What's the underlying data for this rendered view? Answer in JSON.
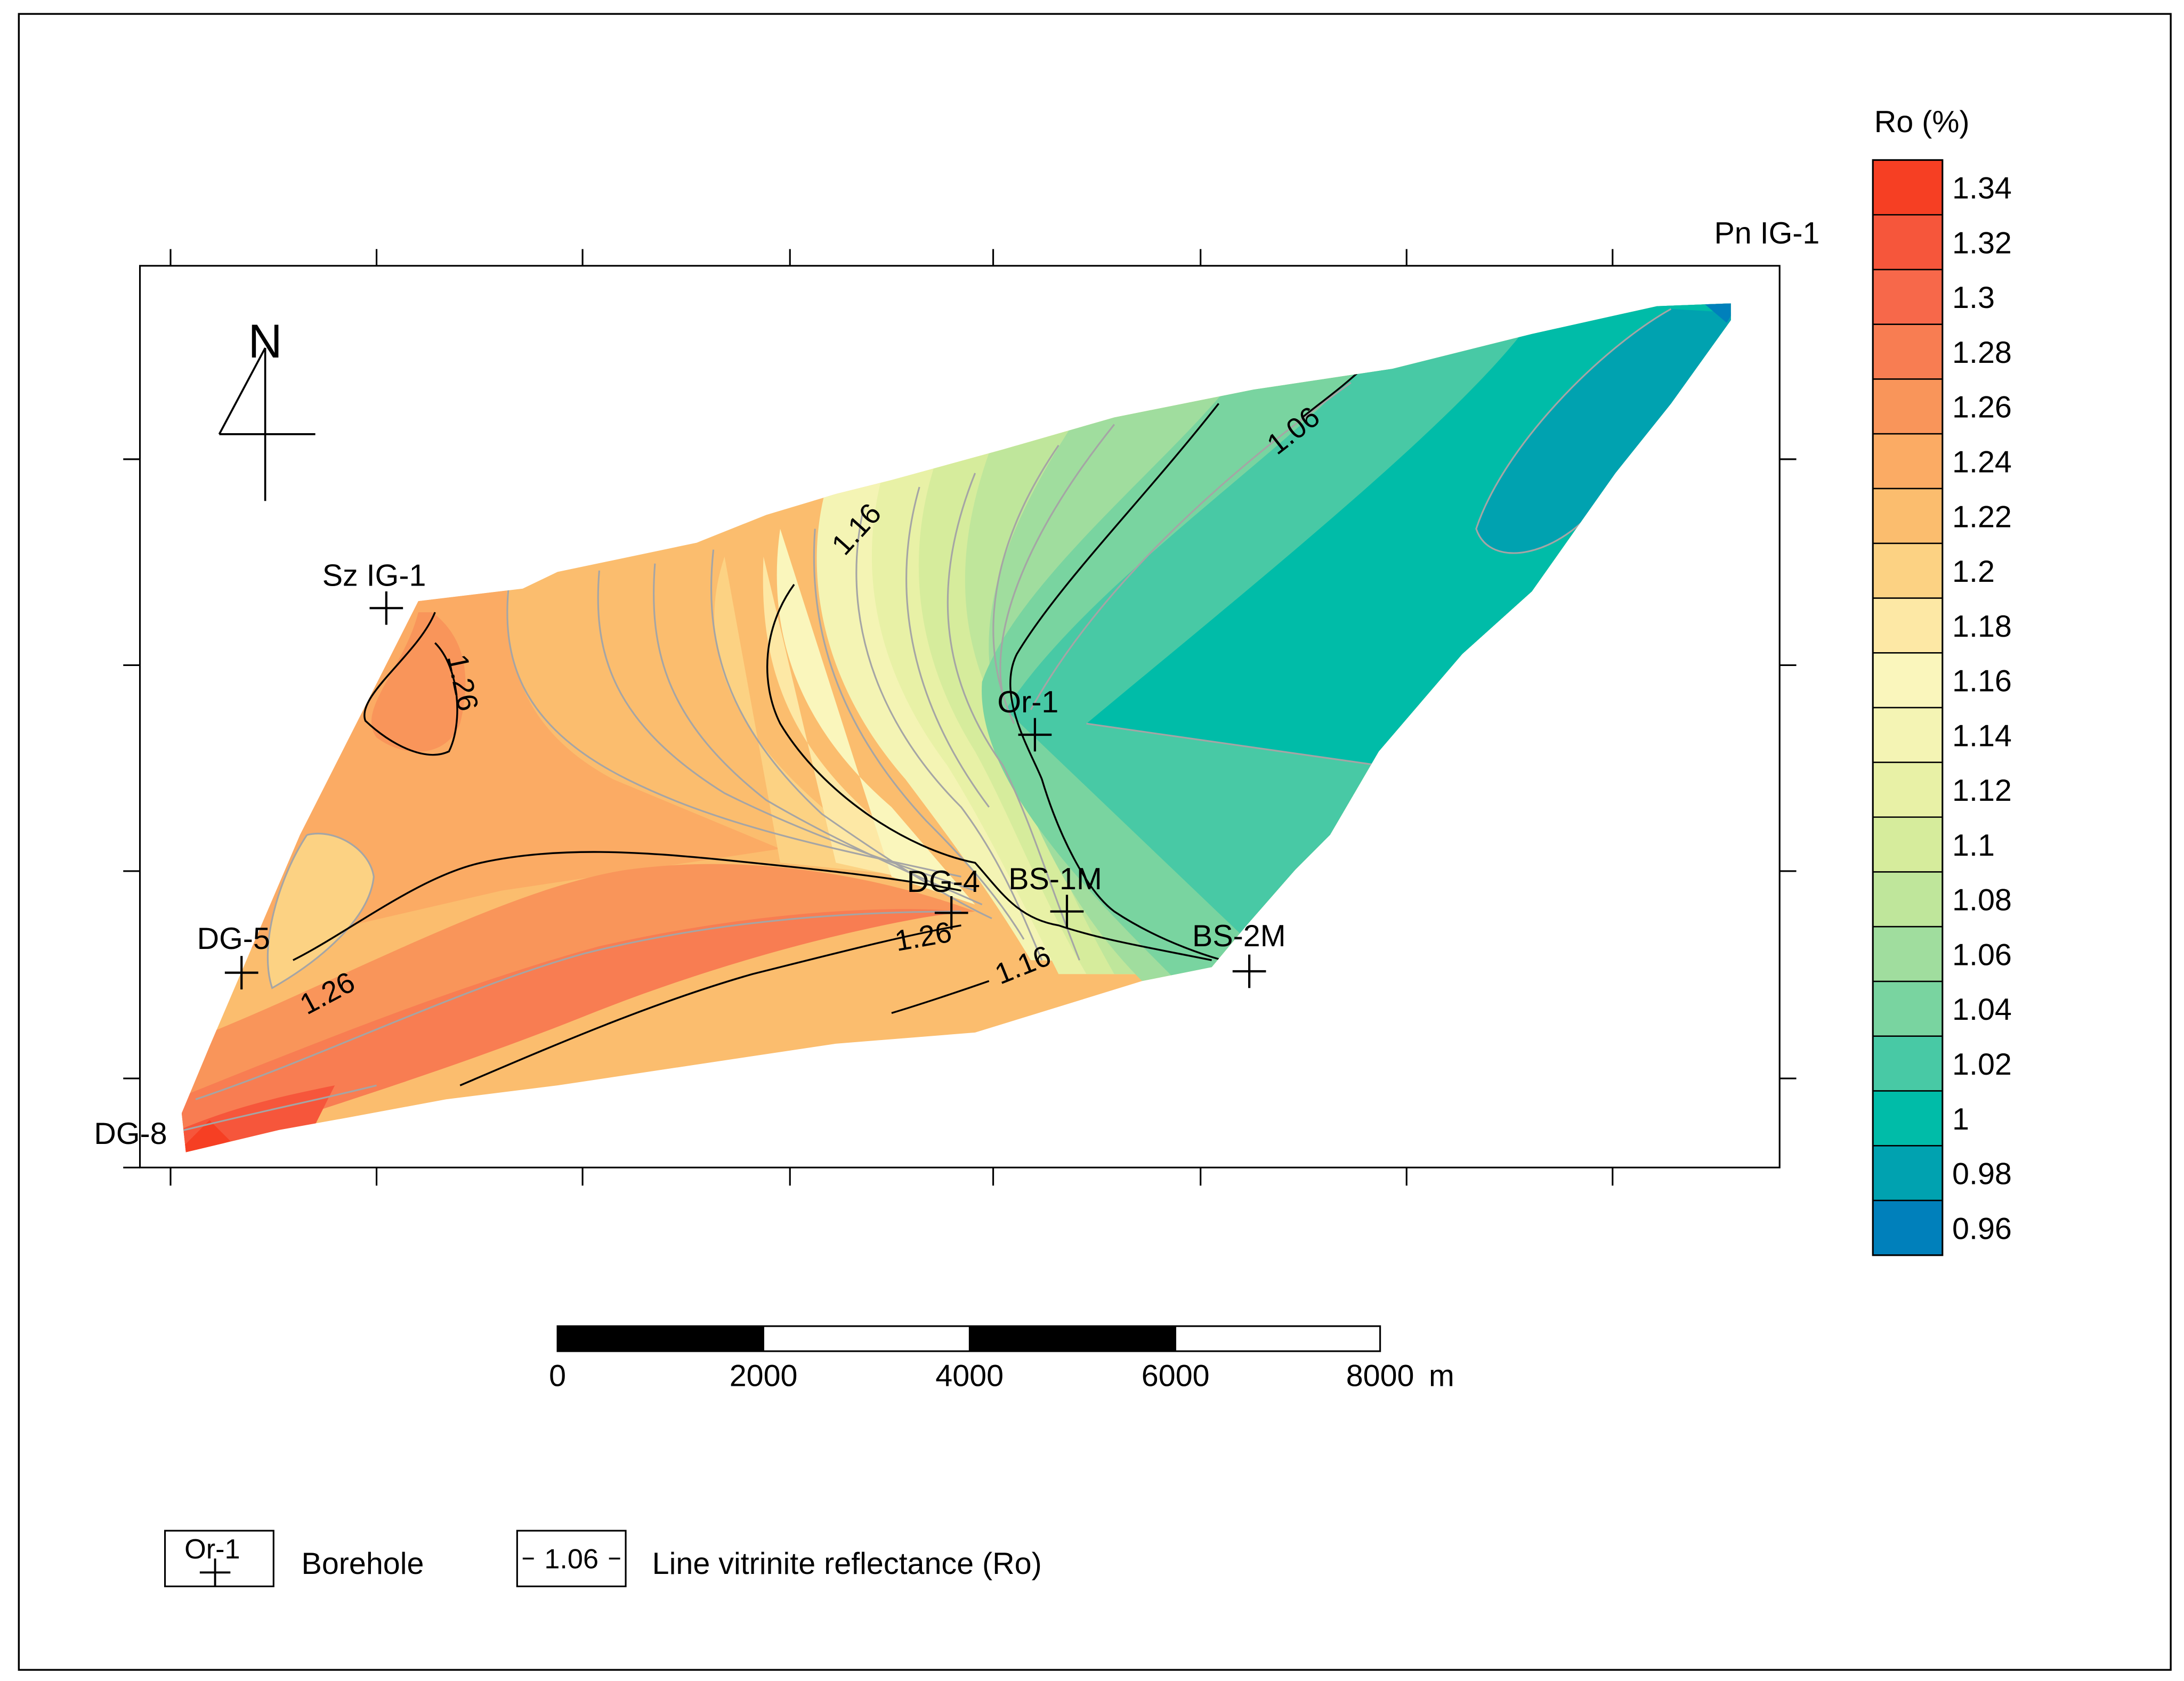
{
  "map": {
    "north_label": "N",
    "boreholes": [
      {
        "id": "szig1",
        "label": "Sz IG-1"
      },
      {
        "id": "or1",
        "label": "Or-1"
      },
      {
        "id": "dg4",
        "label": "DG-4"
      },
      {
        "id": "bs1m",
        "label": "BS-1M"
      },
      {
        "id": "bs2m",
        "label": "BS-2M"
      },
      {
        "id": "dg5",
        "label": "DG-5"
      },
      {
        "id": "dg8",
        "label": "DG-8"
      },
      {
        "id": "pnig1",
        "label": "Pn IG-1"
      }
    ],
    "contour_labels": [
      "1.26",
      "1.16",
      "1.06",
      "1.26",
      "1.26",
      "1.16"
    ]
  },
  "colorbar": {
    "title": "Ro (%)",
    "ticks": [
      "1.34",
      "1.32",
      "1.3",
      "1.28",
      "1.26",
      "1.24",
      "1.22",
      "1.2",
      "1.18",
      "1.16",
      "1.14",
      "1.12",
      "1.1",
      "1.08",
      "1.06",
      "1.04",
      "1.02",
      "1",
      "0.98",
      "0.96"
    ],
    "colors": [
      "#f63f23",
      "#f6563b",
      "#f7684a",
      "#f87d52",
      "#f9955a",
      "#fbab64",
      "#fbbd6e",
      "#fcd283",
      "#fde8a5",
      "#faf6bc",
      "#f4f4b4",
      "#e8f1a6",
      "#d6ec9c",
      "#bfe69b",
      "#a0dd9e",
      "#79d4a0",
      "#48c9a5",
      "#00bca8",
      "#00a2b0",
      "#0080bb"
    ]
  },
  "scale_bar": {
    "ticks": [
      "0",
      "2000",
      "4000",
      "6000",
      "8000"
    ],
    "unit": "m"
  },
  "legend": {
    "borehole_symbol_label": "Or-1",
    "borehole_text": "Borehole",
    "line_symbol_label": "1.06",
    "line_text": "Line vitrinite reflectance (Ro)"
  }
}
